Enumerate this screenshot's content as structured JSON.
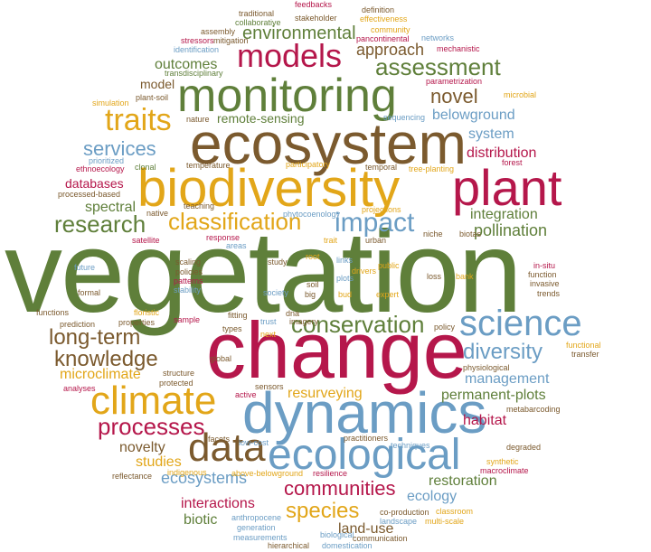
{
  "colors": {
    "green": "#5f7f3a",
    "crimson": "#b5174b",
    "gold": "#e2a619",
    "blue": "#6b9dc4",
    "brown": "#7b5a2e",
    "plum": "#7a1f4f",
    "olive": "#8c7a2c"
  },
  "words": [
    {
      "text": "vegetation",
      "color": "green"
    },
    {
      "text": "change",
      "color": "crimson"
    },
    {
      "text": "ecosystem",
      "color": "brown"
    },
    {
      "text": "biodiversity",
      "color": "gold"
    },
    {
      "text": "monitoring",
      "color": "green"
    },
    {
      "text": "dynamics",
      "color": "blue"
    },
    {
      "text": "plant",
      "color": "crimson"
    },
    {
      "text": "ecological",
      "color": "blue"
    },
    {
      "text": "climate",
      "color": "gold"
    },
    {
      "text": "data",
      "color": "brown"
    },
    {
      "text": "science",
      "color": "blue"
    },
    {
      "text": "models",
      "color": "crimson"
    },
    {
      "text": "traits",
      "color": "gold"
    },
    {
      "text": "classification",
      "color": "gold"
    },
    {
      "text": "research",
      "color": "green"
    },
    {
      "text": "impact",
      "color": "blue"
    },
    {
      "text": "conservation",
      "color": "green"
    },
    {
      "text": "assessment",
      "color": "green"
    },
    {
      "text": "environmental",
      "color": "green"
    },
    {
      "text": "knowledge",
      "color": "brown"
    },
    {
      "text": "long-term",
      "color": "brown"
    },
    {
      "text": "processes",
      "color": "crimson"
    },
    {
      "text": "diversity",
      "color": "blue"
    },
    {
      "text": "communities",
      "color": "crimson"
    },
    {
      "text": "novel",
      "color": "brown"
    },
    {
      "text": "species",
      "color": "gold"
    },
    {
      "text": "services",
      "color": "blue"
    },
    {
      "text": "ecosystems",
      "color": "blue"
    },
    {
      "text": "approach",
      "color": "brown"
    },
    {
      "text": "outcomes",
      "color": "green"
    },
    {
      "text": "remote-sensing",
      "color": "green"
    },
    {
      "text": "pollination",
      "color": "green"
    },
    {
      "text": "integration",
      "color": "green"
    },
    {
      "text": "distribution",
      "color": "crimson"
    },
    {
      "text": "system",
      "color": "blue"
    },
    {
      "text": "belowground",
      "color": "blue"
    },
    {
      "text": "spectral",
      "color": "green"
    },
    {
      "text": "databases",
      "color": "crimson"
    },
    {
      "text": "microclimate",
      "color": "gold"
    },
    {
      "text": "management",
      "color": "blue"
    },
    {
      "text": "permanent-plots",
      "color": "green"
    },
    {
      "text": "resurveying",
      "color": "gold"
    },
    {
      "text": "habitat",
      "color": "crimson"
    },
    {
      "text": "novelty",
      "color": "brown"
    },
    {
      "text": "studies",
      "color": "gold"
    },
    {
      "text": "restoration",
      "color": "green"
    },
    {
      "text": "ecology",
      "color": "blue"
    },
    {
      "text": "interactions",
      "color": "crimson"
    },
    {
      "text": "biotic",
      "color": "green"
    },
    {
      "text": "land-use",
      "color": "brown"
    },
    {
      "text": "model",
      "color": "brown"
    },
    {
      "text": "traditional",
      "color": "brown"
    },
    {
      "text": "feedbacks",
      "color": "crimson"
    },
    {
      "text": "definition",
      "color": "brown"
    },
    {
      "text": "collaborative",
      "color": "green"
    },
    {
      "text": "stakeholder",
      "color": "brown"
    },
    {
      "text": "effectiveness",
      "color": "gold"
    },
    {
      "text": "community",
      "color": "gold"
    },
    {
      "text": "assembly",
      "color": "brown"
    },
    {
      "text": "networks",
      "color": "blue"
    },
    {
      "text": "pancontinental",
      "color": "crimson"
    },
    {
      "text": "stressors",
      "color": "crimson"
    },
    {
      "text": "mitigation",
      "color": "brown"
    },
    {
      "text": "identification",
      "color": "blue"
    },
    {
      "text": "mechanistic",
      "color": "crimson"
    },
    {
      "text": "transdisciplinary",
      "color": "green"
    },
    {
      "text": "parametrization",
      "color": "crimson"
    },
    {
      "text": "plant-soil",
      "color": "brown"
    },
    {
      "text": "simulation",
      "color": "gold"
    },
    {
      "text": "microbial",
      "color": "gold"
    },
    {
      "text": "sequencing",
      "color": "blue"
    },
    {
      "text": "nature",
      "color": "brown"
    },
    {
      "text": "ethnoecology",
      "color": "crimson"
    },
    {
      "text": "prioritized",
      "color": "blue"
    },
    {
      "text": "clonal",
      "color": "green"
    },
    {
      "text": "temperature",
      "color": "brown"
    },
    {
      "text": "participatory",
      "color": "gold"
    },
    {
      "text": "temporal",
      "color": "brown"
    },
    {
      "text": "tree-planting",
      "color": "gold"
    },
    {
      "text": "forest",
      "color": "crimson"
    },
    {
      "text": "processed-based",
      "color": "brown"
    },
    {
      "text": "teaching",
      "color": "brown"
    },
    {
      "text": "phytocoenology",
      "color": "blue"
    },
    {
      "text": "projections",
      "color": "gold"
    },
    {
      "text": "native",
      "color": "brown"
    },
    {
      "text": "response",
      "color": "crimson"
    },
    {
      "text": "areas",
      "color": "blue"
    },
    {
      "text": "trait",
      "color": "gold"
    },
    {
      "text": "niche",
      "color": "brown"
    },
    {
      "text": "biotas",
      "color": "brown"
    },
    {
      "text": "satellite",
      "color": "crimson"
    },
    {
      "text": "urban",
      "color": "brown"
    },
    {
      "text": "links",
      "color": "blue"
    },
    {
      "text": "drivers",
      "color": "gold"
    },
    {
      "text": "public",
      "color": "gold"
    },
    {
      "text": "in-situ",
      "color": "crimson"
    },
    {
      "text": "function",
      "color": "brown"
    },
    {
      "text": "invasive",
      "color": "brown"
    },
    {
      "text": "trends",
      "color": "brown"
    },
    {
      "text": "future",
      "color": "blue"
    },
    {
      "text": "scaling",
      "color": "brown"
    },
    {
      "text": "policies",
      "color": "brown"
    },
    {
      "text": "patterns",
      "color": "crimson"
    },
    {
      "text": "stability",
      "color": "blue"
    },
    {
      "text": "study",
      "color": "brown"
    },
    {
      "text": "root",
      "color": "gold"
    },
    {
      "text": "soil",
      "color": "brown"
    },
    {
      "text": "plots",
      "color": "blue"
    },
    {
      "text": "society",
      "color": "blue"
    },
    {
      "text": "big",
      "color": "brown"
    },
    {
      "text": "bud",
      "color": "gold"
    },
    {
      "text": "expert",
      "color": "gold"
    },
    {
      "text": "loss",
      "color": "brown"
    },
    {
      "text": "bank",
      "color": "gold"
    },
    {
      "text": "formal",
      "color": "brown"
    },
    {
      "text": "functions",
      "color": "brown"
    },
    {
      "text": "prediction",
      "color": "brown"
    },
    {
      "text": "properties",
      "color": "brown"
    },
    {
      "text": "floristic",
      "color": "gold"
    },
    {
      "text": "sample",
      "color": "crimson"
    },
    {
      "text": "fitting",
      "color": "brown"
    },
    {
      "text": "dna",
      "color": "brown"
    },
    {
      "text": "trust",
      "color": "blue"
    },
    {
      "text": "imagery",
      "color": "brown"
    },
    {
      "text": "policy",
      "color": "brown"
    },
    {
      "text": "types",
      "color": "brown"
    },
    {
      "text": "next",
      "color": "gold"
    },
    {
      "text": "functional",
      "color": "gold"
    },
    {
      "text": "transfer",
      "color": "brown"
    },
    {
      "text": "global",
      "color": "brown"
    },
    {
      "text": "physiological",
      "color": "brown"
    },
    {
      "text": "structure",
      "color": "brown"
    },
    {
      "text": "protected",
      "color": "brown"
    },
    {
      "text": "analyses",
      "color": "crimson"
    },
    {
      "text": "active",
      "color": "crimson"
    },
    {
      "text": "sensors",
      "color": "brown"
    },
    {
      "text": "metabarcoding",
      "color": "brown"
    },
    {
      "text": "facets",
      "color": "brown"
    },
    {
      "text": "low-cost",
      "color": "blue"
    },
    {
      "text": "practitioners",
      "color": "brown"
    },
    {
      "text": "techniques",
      "color": "blue"
    },
    {
      "text": "degraded",
      "color": "brown"
    },
    {
      "text": "synthetic",
      "color": "gold"
    },
    {
      "text": "macroclimate",
      "color": "crimson"
    },
    {
      "text": "reflectance",
      "color": "brown"
    },
    {
      "text": "indigenous",
      "color": "gold"
    },
    {
      "text": "above-belowground",
      "color": "gold"
    },
    {
      "text": "resilience",
      "color": "crimson"
    },
    {
      "text": "anthropocene",
      "color": "blue"
    },
    {
      "text": "co-production",
      "color": "brown"
    },
    {
      "text": "classroom",
      "color": "gold"
    },
    {
      "text": "landscape",
      "color": "blue"
    },
    {
      "text": "multi-scale",
      "color": "gold"
    },
    {
      "text": "generation",
      "color": "blue"
    },
    {
      "text": "measurements",
      "color": "blue"
    },
    {
      "text": "biological",
      "color": "blue"
    },
    {
      "text": "communication",
      "color": "brown"
    },
    {
      "text": "hierarchical",
      "color": "brown"
    },
    {
      "text": "domestication",
      "color": "blue"
    }
  ]
}
